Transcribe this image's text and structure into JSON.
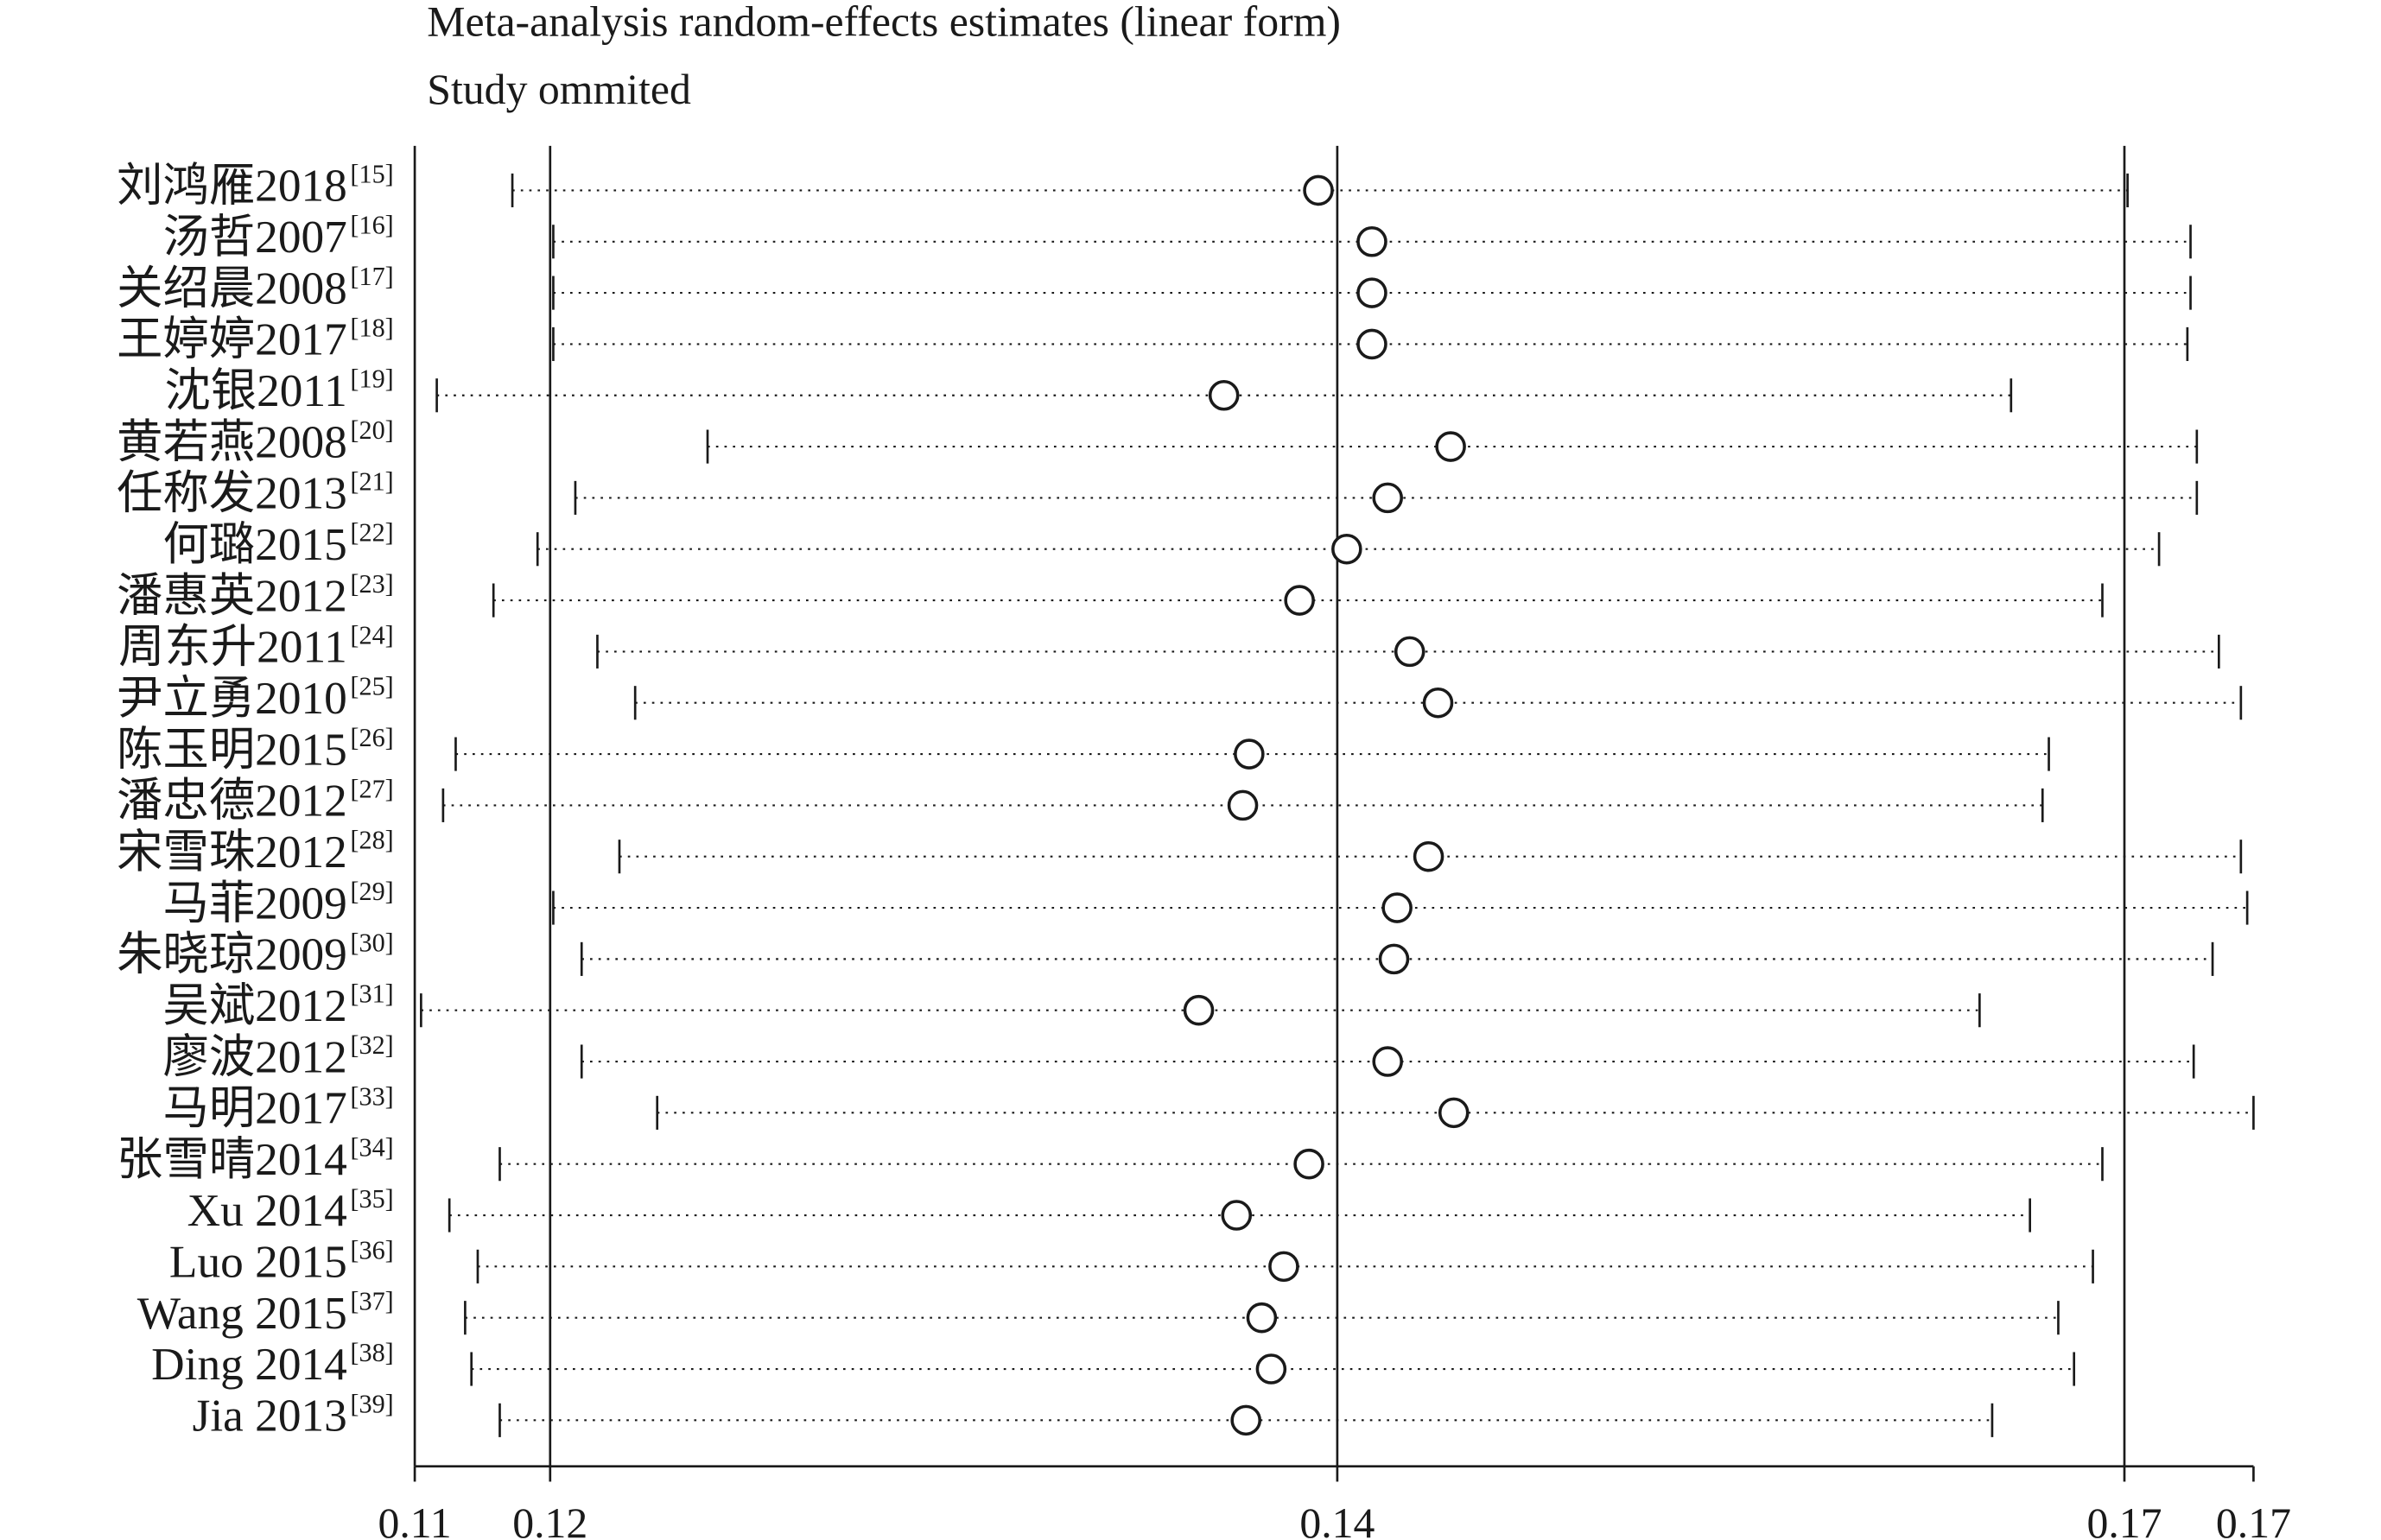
{
  "chart_data": {
    "type": "forest",
    "title": "Meta-analysis random-effects estimates (linear form)",
    "subtitle": "Study ommited",
    "categories": [
      "刘鸿雁2018",
      "汤哲2007",
      "关绍晨2008",
      "王婷婷2017",
      "沈银2011",
      "黄若燕2008",
      "任称发2013",
      "何璐2015",
      "潘惠英2012",
      "周东升2011",
      "尹立勇2010",
      "陈玉明2015",
      "潘忠德2012",
      "宋雪珠2012",
      "马菲2009",
      "朱晓琼2009",
      "吴斌2012",
      "廖波2012",
      "马明2017",
      "张雪晴2014",
      "Xu 2014",
      "Luo 2015",
      "Wang 2015",
      "Ding 2014",
      "Jia 2013"
    ],
    "refs": [
      "[15]",
      "[16]",
      "[17]",
      "[18]",
      "[19]",
      "[20]",
      "[21]",
      "[22]",
      "[23]",
      "[24]",
      "[25]",
      "[26]",
      "[27]",
      "[28]",
      "[29]",
      "[30]",
      "[31]",
      "[32]",
      "[33]",
      "[34]",
      "[35]",
      "[36]",
      "[37]",
      "[38]",
      "[39]"
    ],
    "estimate": [
      0.1419,
      0.1436,
      0.1436,
      0.1436,
      0.1389,
      0.1461,
      0.1441,
      0.1428,
      0.1413,
      0.1448,
      0.1457,
      0.1397,
      0.1395,
      0.1454,
      0.1444,
      0.1443,
      0.1381,
      0.1441,
      0.1462,
      0.1416,
      0.1393,
      0.1408,
      0.1401,
      0.1404,
      0.1396
    ],
    "lower": [
      0.1163,
      0.1176,
      0.1176,
      0.1176,
      0.1139,
      0.1225,
      0.1183,
      0.1171,
      0.1157,
      0.119,
      0.1202,
      0.1145,
      0.1141,
      0.1197,
      0.1176,
      0.1185,
      0.1134,
      0.1185,
      0.1209,
      0.1159,
      0.1143,
      0.1152,
      0.1148,
      0.115,
      0.1159
    ],
    "upper": [
      0.1676,
      0.1696,
      0.1696,
      0.1695,
      0.1639,
      0.1698,
      0.1698,
      0.1686,
      0.1668,
      0.1705,
      0.1712,
      0.1651,
      0.1649,
      0.1712,
      0.1714,
      0.1703,
      0.1629,
      0.1697,
      0.1716,
      0.1668,
      0.1645,
      0.1665,
      0.1654,
      0.1659,
      0.1633
    ],
    "overall": {
      "lower": 0.1175,
      "estimate": 0.1425,
      "upper": 0.1675
    },
    "xlim": [
      0.1132,
      0.1716
    ],
    "xticks": [
      {
        "value": 0.1132,
        "label": "0.11"
      },
      {
        "value": 0.1175,
        "label": "0.12"
      },
      {
        "value": 0.1425,
        "label": "0.14"
      },
      {
        "value": 0.1675,
        "label": "0.17"
      },
      {
        "value": 0.1716,
        "label": "0.17"
      }
    ],
    "color": "#1a1a1a"
  }
}
